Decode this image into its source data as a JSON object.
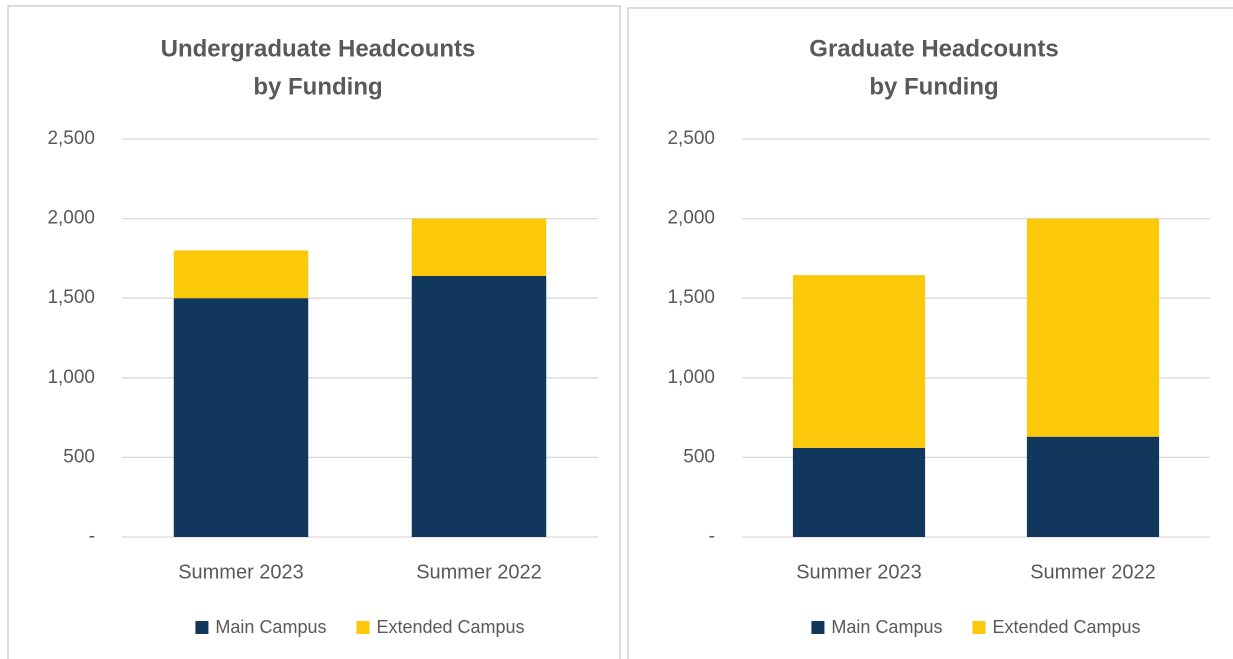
{
  "chart_data": [
    {
      "type": "stacked_bar",
      "title": [
        "Undergraduate Headcounts",
        "by Funding"
      ],
      "categories": [
        "Summer 2023",
        "Summer 2022"
      ],
      "series": [
        {
          "name": "Main Campus",
          "color": "#12375c",
          "values": [
            1500,
            1640
          ]
        },
        {
          "name": "Extended Campus",
          "color": "#fcc80a",
          "values": [
            300,
            360
          ]
        }
      ],
      "ylim": [
        0,
        2500
      ],
      "yticks": [
        {
          "value": 0,
          "label": "-"
        },
        500,
        {
          "value": 1000,
          "label": "1,000"
        },
        {
          "value": 1500,
          "label": "1,500"
        },
        {
          "value": 2000,
          "label": "2,000"
        },
        {
          "value": 2500,
          "label": "2,500"
        }
      ],
      "grid": true,
      "legend": "bottom"
    },
    {
      "type": "stacked_bar",
      "title": [
        "Graduate Headcounts",
        "by Funding"
      ],
      "categories": [
        "Summer 2023",
        "Summer 2022"
      ],
      "series": [
        {
          "name": "Main Campus",
          "color": "#12375c",
          "values": [
            560,
            630
          ]
        },
        {
          "name": "Extended Campus",
          "color": "#fcc80a",
          "values": [
            1085,
            1370
          ]
        }
      ],
      "ylim": [
        0,
        2500
      ],
      "yticks": [
        {
          "value": 0,
          "label": "-"
        },
        500,
        {
          "value": 1000,
          "label": "1,000"
        },
        {
          "value": 1500,
          "label": "1,500"
        },
        {
          "value": 2000,
          "label": "2,000"
        },
        {
          "value": 2500,
          "label": "2,500"
        }
      ],
      "grid": true,
      "legend": "bottom"
    }
  ]
}
